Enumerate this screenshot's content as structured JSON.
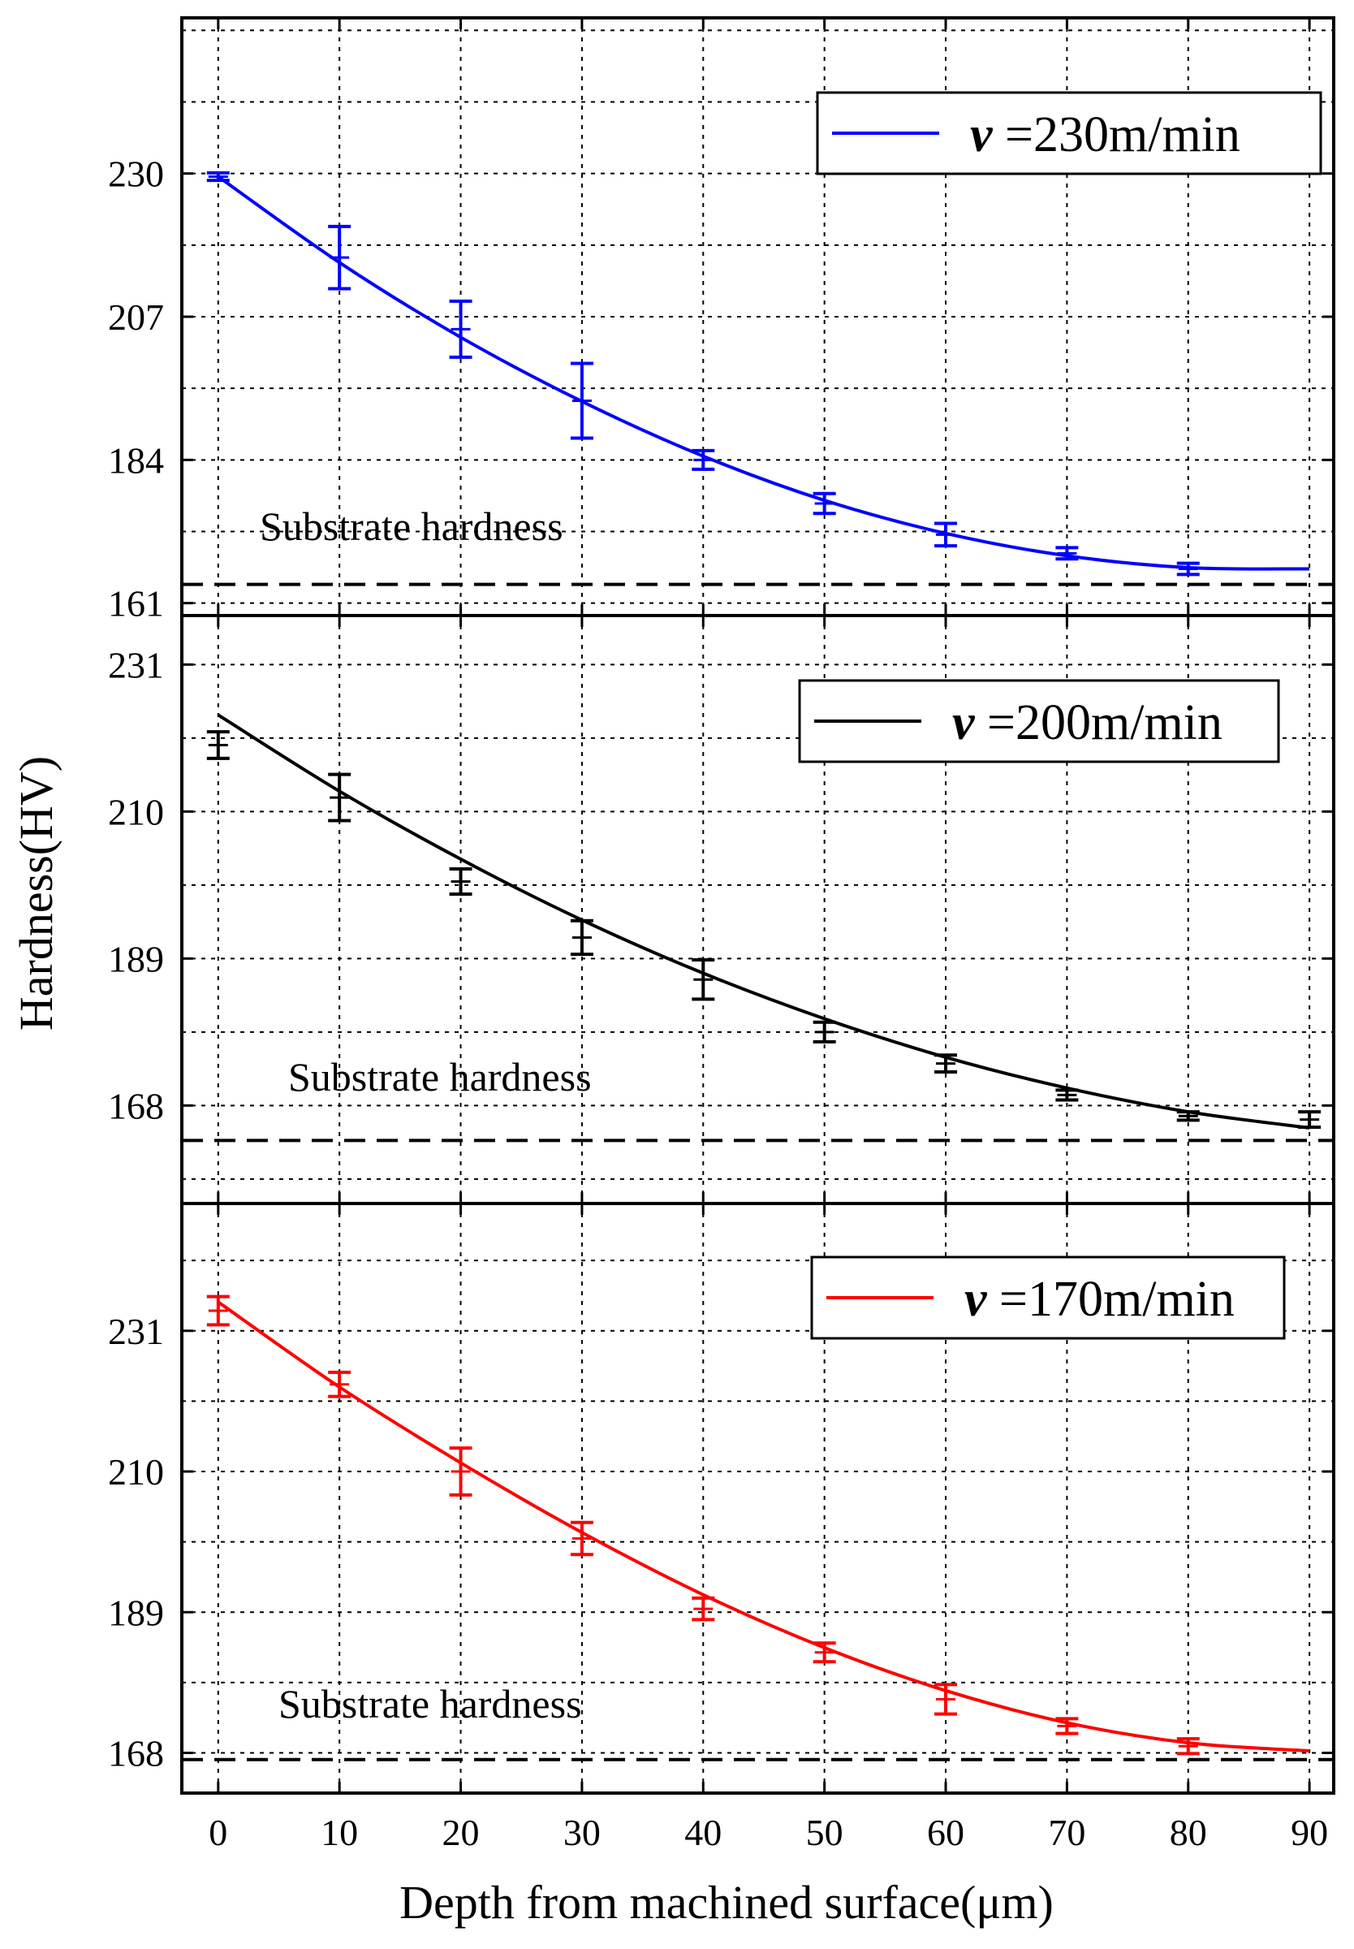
{
  "x_axis": {
    "label": "Depth from machined surface(μm)",
    "ticks": [
      "0",
      "10",
      "20",
      "30",
      "40",
      "50",
      "60",
      "70",
      "80",
      "90"
    ]
  },
  "y_axis": {
    "label": "Hardness(HV)"
  },
  "chart_data": [
    {
      "type": "line",
      "legend": "=230m/min",
      "legend_symbol": "v",
      "color": "#0000ff",
      "annotation": "Substrate hardness",
      "substrate_hardness": 164,
      "ylim": [
        159,
        255
      ],
      "yticks": [
        161,
        184,
        207,
        230
      ],
      "xlim": [
        -3,
        92
      ],
      "x": [
        0,
        10,
        20,
        30,
        40,
        50,
        60,
        70,
        80
      ],
      "values": [
        229.5,
        216.5,
        205,
        193.5,
        184,
        177,
        172,
        169,
        166.5
      ],
      "errors": [
        0.6,
        5,
        4.5,
        6,
        1.5,
        1.6,
        1.8,
        0.9,
        0.9
      ],
      "fit": {
        "x": [
          0,
          10,
          20,
          30,
          40,
          50,
          60,
          70,
          80,
          90
        ],
        "y": [
          229.5,
          215.7,
          203.7,
          193.4,
          184.6,
          177.5,
          172.2,
          168.6,
          166.7,
          166.5
        ]
      }
    },
    {
      "type": "line",
      "legend": "=200m/min",
      "legend_symbol": "v",
      "color": "#000000",
      "annotation": "Substrate hardness",
      "substrate_hardness": 163,
      "ylim": [
        154,
        238
      ],
      "yticks": [
        168,
        189,
        210,
        231
      ],
      "xlim": [
        -3,
        92
      ],
      "x": [
        0,
        10,
        20,
        30,
        40,
        50,
        60,
        70,
        80,
        90
      ],
      "values": [
        219.5,
        212,
        200,
        192,
        186,
        178.5,
        174,
        169.5,
        166.5,
        166
      ],
      "errors": [
        1.9,
        3.3,
        1.8,
        2.4,
        2.8,
        1.4,
        1.2,
        0.7,
        0.6,
        1.1
      ],
      "fit": {
        "x": [
          0,
          10,
          20,
          30,
          40,
          50,
          60,
          70,
          80,
          90
        ],
        "y": [
          223.8,
          212.9,
          203.2,
          194.5,
          186.9,
          180.4,
          174.9,
          170.5,
          167.1,
          164.8
        ]
      }
    },
    {
      "type": "line",
      "legend": "=170m/min",
      "legend_symbol": "v",
      "color": "#ff0000",
      "annotation": "Substrate hardness",
      "substrate_hardness": 167,
      "ylim": [
        162,
        250
      ],
      "yticks": [
        168,
        189,
        210,
        231
      ],
      "xlim": [
        -3,
        92
      ],
      "x": [
        0,
        10,
        20,
        30,
        40,
        50,
        60,
        70,
        80
      ],
      "values": [
        234,
        223,
        210,
        200,
        189.5,
        183,
        176,
        172,
        169
      ],
      "errors": [
        2.1,
        1.8,
        3.5,
        2.4,
        1.6,
        1.4,
        2.2,
        1.1,
        1.1
      ],
      "fit": {
        "x": [
          0,
          10,
          20,
          30,
          40,
          50,
          60,
          70,
          80,
          90
        ],
        "y": [
          235.3,
          222.6,
          211.3,
          200.9,
          191.6,
          183.7,
          177.3,
          172.5,
          169.5,
          168.3
        ]
      }
    }
  ]
}
